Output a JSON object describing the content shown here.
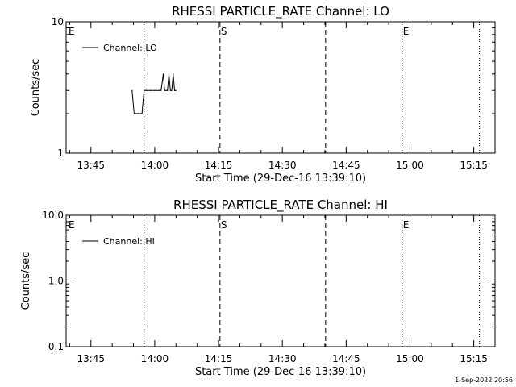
{
  "chart_data": [
    {
      "type": "line",
      "title": "RHESSI PARTICLE_RATE Channel: LO",
      "xlabel": "Start Time (29-Dec-16 13:39:10)",
      "ylabel": "Counts/sec",
      "yscale": "log",
      "ylim": [
        1,
        10
      ],
      "y_tick_labels": [
        "1",
        "10"
      ],
      "y_tick_values": [
        1,
        10
      ],
      "xlim": [
        "13:39:10",
        "15:20:00"
      ],
      "x_tick_labels": [
        "13:45",
        "14:00",
        "14:15",
        "14:30",
        "14:45",
        "15:00",
        "15:15"
      ],
      "legend": {
        "placement": "top-left",
        "entries": [
          "Channel: LO"
        ]
      },
      "series": [
        {
          "name": "Channel: LO",
          "x": [
            "13:54:40",
            "13:55:10",
            "13:55:40",
            "13:56:10",
            "13:57:00",
            "13:57:30",
            "13:58:00",
            "13:59:00",
            "14:00:00",
            "14:01:00",
            "14:01:30",
            "14:02:00",
            "14:02:20",
            "14:02:40",
            "14:03:00",
            "14:03:20",
            "14:03:40",
            "14:04:00",
            "14:04:20",
            "14:04:40",
            "14:05:00"
          ],
          "values": [
            3,
            2,
            2,
            2,
            2,
            3,
            3,
            3,
            3,
            3,
            3,
            4,
            3,
            3,
            3,
            4,
            3,
            3,
            4,
            3,
            3
          ]
        }
      ],
      "markers": [
        {
          "label": "E",
          "time": "13:39:10",
          "line": "none"
        },
        {
          "label": "",
          "time": "13:57:30",
          "line": "dotted"
        },
        {
          "label": "S",
          "time": "14:15:20",
          "line": "dashed"
        },
        {
          "label": "",
          "time": "14:40:10",
          "line": "dashed"
        },
        {
          "label": "E",
          "time": "14:58:10",
          "line": "dotted"
        },
        {
          "label": "",
          "time": "15:16:20",
          "line": "dotted"
        }
      ]
    },
    {
      "type": "line",
      "title": "RHESSI PARTICLE_RATE Channel: HI",
      "xlabel": "Start Time (29-Dec-16 13:39:10)",
      "ylabel": "Counts/sec",
      "yscale": "log",
      "ylim": [
        0.1,
        10
      ],
      "y_tick_labels": [
        "0.1",
        "1.0",
        "10.0"
      ],
      "y_tick_values": [
        0.1,
        1,
        10
      ],
      "xlim": [
        "13:39:10",
        "15:20:00"
      ],
      "x_tick_labels": [
        "13:45",
        "14:00",
        "14:15",
        "14:30",
        "14:45",
        "15:00",
        "15:15"
      ],
      "legend": {
        "placement": "top-left",
        "entries": [
          "Channel: HI"
        ]
      },
      "series": [
        {
          "name": "Channel: HI",
          "x": [],
          "values": []
        }
      ],
      "markers": [
        {
          "label": "E",
          "time": "13:39:10",
          "line": "none"
        },
        {
          "label": "",
          "time": "13:57:30",
          "line": "dotted"
        },
        {
          "label": "S",
          "time": "14:15:20",
          "line": "dashed"
        },
        {
          "label": "",
          "time": "14:40:10",
          "line": "dashed"
        },
        {
          "label": "E",
          "time": "14:58:10",
          "line": "dotted"
        },
        {
          "label": "",
          "time": "15:16:20",
          "line": "dotted"
        }
      ]
    }
  ],
  "footer": {
    "timestamp": "1-Sep-2022 20:56"
  }
}
